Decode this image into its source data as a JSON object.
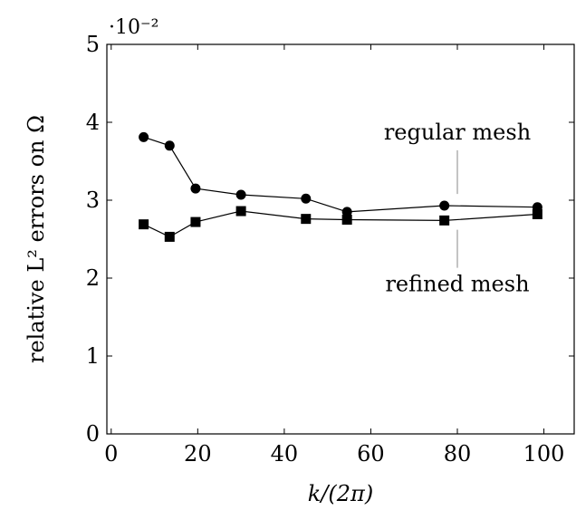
{
  "chart_data": {
    "type": "line",
    "title": "",
    "xlabel": "k/(2π)",
    "ylabel": "relative L² errors on Ω",
    "xlim": [
      -1,
      107
    ],
    "ylim": [
      0,
      5
    ],
    "x_ticks": [
      0,
      20,
      40,
      60,
      80,
      100
    ],
    "y_ticks": [
      0,
      1,
      2,
      3,
      4,
      5
    ],
    "y_scale_label": "·10⁻²",
    "grid": false,
    "legend": "none",
    "series": [
      {
        "marker": "circle",
        "x": [
          7.5,
          13.5,
          19.5,
          30,
          45,
          54.5,
          77,
          98.5
        ],
        "y": [
          3.81,
          3.7,
          3.15,
          3.07,
          3.02,
          2.85,
          2.93,
          2.91
        ]
      },
      {
        "marker": "square",
        "x": [
          7.5,
          13.5,
          19.5,
          30,
          45,
          54.5,
          77,
          98.5
        ],
        "y": [
          2.69,
          2.53,
          2.72,
          2.86,
          2.76,
          2.75,
          2.74,
          2.82
        ]
      }
    ],
    "annotations": [
      {
        "text": "regular mesh",
        "x": 80,
        "y": 3.78,
        "line_to_y": 3.08
      },
      {
        "text": "refined mesh",
        "x": 80,
        "y": 1.83,
        "line_to_y": 2.62
      }
    ],
    "colors": {
      "line": "#000000",
      "marker": "#000000"
    }
  }
}
